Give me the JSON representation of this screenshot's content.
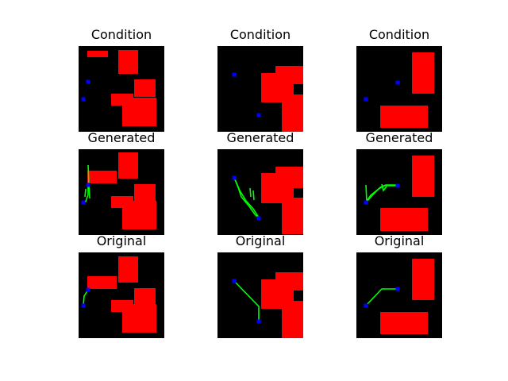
{
  "colors": {
    "obstacle": "#ff0000",
    "marker": "#0000ff",
    "path": "#00ff00",
    "background": "#000000"
  },
  "panels": [
    {
      "title": "Condition",
      "obstacles": [
        [
          11,
          6,
          26,
          8
        ],
        [
          50,
          5,
          25,
          30
        ],
        [
          70,
          42,
          27,
          22
        ],
        [
          41,
          60,
          28,
          15
        ],
        [
          55,
          65,
          43,
          36
        ]
      ],
      "markers": [
        [
          12,
          45
        ],
        [
          6,
          67
        ]
      ],
      "paths": []
    },
    {
      "title": "Condition",
      "obstacles": [
        [
          73,
          25,
          35,
          23
        ],
        [
          55,
          34,
          41,
          37
        ],
        [
          81,
          61,
          27,
          47
        ]
      ],
      "markers": [
        [
          21,
          36
        ],
        [
          52,
          87
        ]
      ],
      "paths": []
    },
    {
      "title": "Condition",
      "obstacles": [
        [
          70,
          8,
          28,
          52
        ],
        [
          30,
          75,
          60,
          28
        ]
      ],
      "markers": [
        [
          52,
          46
        ],
        [
          12,
          67
        ]
      ],
      "paths": []
    },
    {
      "title": "Generated",
      "obstacles": [
        [
          11,
          27,
          37,
          16
        ],
        [
          50,
          4,
          25,
          33
        ],
        [
          70,
          44,
          27,
          25
        ],
        [
          41,
          59,
          28,
          15
        ],
        [
          55,
          65,
          43,
          36
        ]
      ],
      "markers": [
        [
          12,
          45
        ],
        [
          6,
          67
        ]
      ],
      "paths": [
        [
          [
            12,
            45
          ],
          [
            12,
            57
          ],
          [
            9,
            66
          ],
          [
            6,
            67
          ]
        ],
        [
          [
            12,
            20
          ],
          [
            13,
            45
          ],
          [
            14,
            62
          ]
        ],
        [
          [
            9,
            50
          ],
          [
            8,
            60
          ]
        ]
      ]
    },
    {
      "title": "Generated",
      "obstacles": [
        [
          73,
          22,
          35,
          27
        ],
        [
          55,
          30,
          41,
          38
        ],
        [
          81,
          61,
          27,
          46
        ]
      ],
      "markers": [
        [
          21,
          36
        ],
        [
          52,
          87
        ]
      ],
      "paths": [
        [
          [
            21,
            36
          ],
          [
            26,
            48
          ],
          [
            30,
            60
          ],
          [
            40,
            72
          ],
          [
            47,
            82
          ],
          [
            52,
            87
          ]
        ],
        [
          [
            22,
            38
          ],
          [
            28,
            52
          ],
          [
            36,
            65
          ],
          [
            45,
            75
          ],
          [
            52,
            86
          ]
        ],
        [
          [
            41,
            49
          ],
          [
            42,
            60
          ]
        ],
        [
          [
            45,
            52
          ],
          [
            46,
            64
          ]
        ]
      ]
    },
    {
      "title": "Generated",
      "obstacles": [
        [
          70,
          8,
          28,
          52
        ],
        [
          30,
          74,
          60,
          29
        ]
      ],
      "markers": [
        [
          52,
          46
        ],
        [
          12,
          67
        ]
      ],
      "paths": [
        [
          [
            12,
            67
          ],
          [
            18,
            58
          ],
          [
            28,
            50
          ],
          [
            35,
            46
          ],
          [
            52,
            46
          ]
        ],
        [
          [
            13,
            66
          ],
          [
            22,
            56
          ],
          [
            30,
            48
          ],
          [
            37,
            45
          ],
          [
            52,
            45
          ]
        ],
        [
          [
            12,
            45
          ],
          [
            13,
            66
          ]
        ],
        [
          [
            32,
            44
          ],
          [
            34,
            52
          ],
          [
            38,
            47
          ]
        ]
      ]
    },
    {
      "title": "Original",
      "obstacles": [
        [
          11,
          30,
          37,
          16
        ],
        [
          50,
          5,
          25,
          33
        ],
        [
          70,
          45,
          27,
          25
        ],
        [
          41,
          60,
          28,
          15
        ],
        [
          55,
          65,
          43,
          36
        ]
      ],
      "markers": [
        [
          12,
          47
        ],
        [
          6,
          67
        ]
      ],
      "paths": [
        [
          [
            12,
            47
          ],
          [
            7,
            55
          ],
          [
            6,
            67
          ]
        ]
      ]
    },
    {
      "title": "Original",
      "obstacles": [
        [
          73,
          25,
          35,
          23
        ],
        [
          55,
          34,
          41,
          37
        ],
        [
          81,
          61,
          27,
          47
        ]
      ],
      "markers": [
        [
          21,
          36
        ],
        [
          52,
          87
        ]
      ],
      "paths": [
        [
          [
            21,
            36
          ],
          [
            52,
            68
          ],
          [
            52,
            87
          ]
        ]
      ]
    },
    {
      "title": "Original",
      "obstacles": [
        [
          70,
          8,
          28,
          52
        ],
        [
          30,
          75,
          60,
          28
        ]
      ],
      "markers": [
        [
          52,
          46
        ],
        [
          12,
          67
        ]
      ],
      "paths": [
        [
          [
            12,
            67
          ],
          [
            32,
            46
          ],
          [
            52,
            46
          ]
        ]
      ]
    }
  ]
}
